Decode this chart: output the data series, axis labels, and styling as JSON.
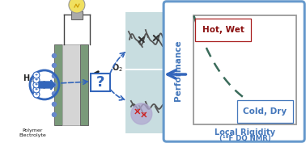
{
  "bg_color": "#ffffff",
  "outer_box_color": "#6699cc",
  "inner_box_color": "#999999",
  "curve_color": "#3a6b5a",
  "hot_wet_text": "Hot, Wet",
  "hot_wet_color": "#8b1010",
  "cold_dry_text": "Cold, Dry",
  "cold_dry_color": "#4477bb",
  "xlabel1": "Local Rigidity",
  "xlabel2": "(¹⁹F DQ NMR)",
  "ylabel": "Performance",
  "label_color": "#4477bb",
  "membrane_light": "#d5d5d5",
  "membrane_green": "#7a9a7a",
  "membrane_edge": "#555555",
  "bulb_yellow": "#d4b800",
  "bulb_glass": "#f0e060",
  "h2_color": "#222222",
  "o2_color": "#222222",
  "circle_blue": "#3366bb",
  "arrow_blue": "#3366bb",
  "q_blue": "#3366bb",
  "poly_bg_color": "#c8dde0",
  "poly_chain_color": "#555555",
  "poly_blob_color": "#b0a8d0",
  "label_bottom": "Polymer\nElectrolyte",
  "label_bottom_color": "#111111",
  "wire_color": "#444444",
  "dot_color": "#dddddd",
  "dot_blue": "#6688cc"
}
